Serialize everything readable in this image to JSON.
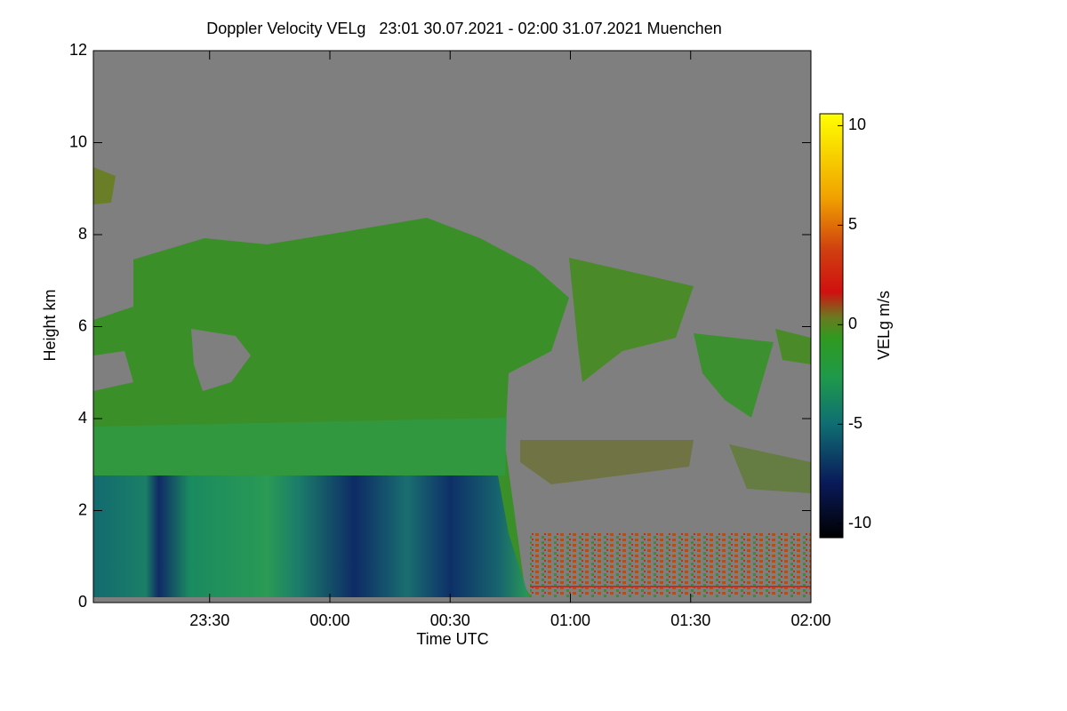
{
  "chart_data": {
    "type": "heatmap",
    "title": "Doppler Velocity VELg   23:01 30.07.2021 - 02:00 31.07.2021 Muenchen",
    "x_label": "Time UTC",
    "y_label": "Height km",
    "colorbar_label": "VELg m/s",
    "xlim": [
      23.0167,
      26.0
    ],
    "xticks": [
      {
        "value": 23.5,
        "label": "23:30"
      },
      {
        "value": 24.0,
        "label": "00:00"
      },
      {
        "value": 24.5,
        "label": "00:30"
      },
      {
        "value": 25.0,
        "label": "01:00"
      },
      {
        "value": 25.5,
        "label": "01:30"
      },
      {
        "value": 26.0,
        "label": "02:00"
      }
    ],
    "ylim": [
      0,
      12
    ],
    "yticks": [
      0,
      2,
      4,
      6,
      8,
      10,
      12
    ],
    "zlim": [
      -10.7,
      10.6
    ],
    "zticks": [
      -10,
      -5,
      0,
      5,
      10
    ]
  }
}
